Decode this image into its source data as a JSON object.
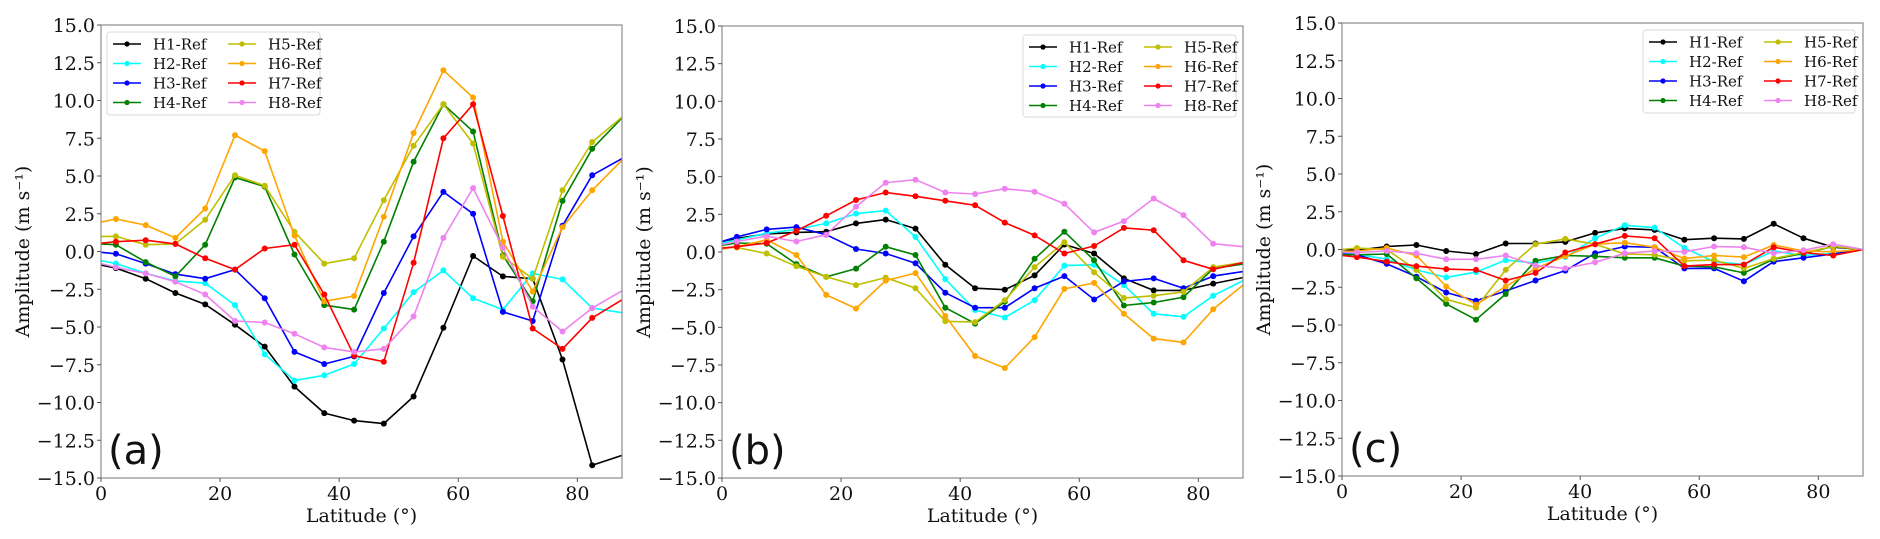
{
  "chart_data": [
    {
      "type": "line",
      "panel_label": "(a)",
      "xlabel": "Latitude (°)",
      "ylabel": "Amplitude (m s⁻¹)",
      "xlim": [
        0,
        87.5
      ],
      "ylim": [
        -15,
        15
      ],
      "xticks": [
        0,
        20,
        40,
        60,
        80
      ],
      "xtick_labels": [
        "0",
        "20",
        "40",
        "60",
        "80"
      ],
      "yticks": [
        -15,
        -12.5,
        -10,
        -7.5,
        -5,
        -2.5,
        0,
        2.5,
        5,
        7.5,
        10,
        12.5,
        15
      ],
      "ytick_labels": [
        "−15.0",
        "−12.5",
        "−10.0",
        "−7.5",
        "−5.0",
        "−2.5",
        "0.0",
        "2.5",
        "5.0",
        "7.5",
        "10.0",
        "12.5",
        "15.0"
      ],
      "legend_position": "top-left",
      "grid": false,
      "x": [
        0,
        2.5,
        7.5,
        12.5,
        17.5,
        22.5,
        27.5,
        32.5,
        37.5,
        42.5,
        47.5,
        52.5,
        57.5,
        62.5,
        67.5,
        72.5,
        77.5,
        82.5,
        87.5
      ],
      "series": [
        {
          "name": "H1-Ref",
          "color": "#000000",
          "values": [
            -0.9,
            -1.1,
            -1.8,
            -2.75,
            -3.5,
            -4.85,
            -6.3,
            -8.95,
            -10.7,
            -11.2,
            -11.4,
            -9.6,
            -5.05,
            -0.3,
            -1.65,
            -1.8,
            -7.15,
            -14.15,
            -13.5
          ]
        },
        {
          "name": "H2-Ref",
          "color": "#00ffff",
          "values": [
            -0.6,
            -0.8,
            -1.45,
            -1.95,
            -2.1,
            -3.55,
            -6.8,
            -8.55,
            -8.2,
            -7.45,
            -5.1,
            -2.7,
            -1.25,
            -3.1,
            -3.85,
            -1.45,
            -1.85,
            -3.75,
            -4.05
          ]
        },
        {
          "name": "H3-Ref",
          "color": "#0000ff",
          "values": [
            -0.05,
            -0.15,
            -0.8,
            -1.5,
            -1.8,
            -1.2,
            -3.1,
            -6.65,
            -7.45,
            -6.95,
            -2.75,
            1.0,
            3.95,
            2.5,
            -4.0,
            -4.6,
            1.7,
            5.05,
            6.15
          ]
        },
        {
          "name": "H4-Ref",
          "color": "#008000",
          "values": [
            0.5,
            0.45,
            -0.7,
            -1.65,
            0.45,
            4.9,
            4.3,
            -0.2,
            -3.55,
            -3.85,
            0.65,
            5.95,
            9.75,
            7.95,
            -0.25,
            -3.3,
            3.35,
            6.8,
            8.85
          ]
        },
        {
          "name": "H5-Ref",
          "color": "#bfbf00",
          "values": [
            1.0,
            1.0,
            0.45,
            0.5,
            2.1,
            5.05,
            4.35,
            1.3,
            -0.8,
            -0.45,
            3.4,
            7.0,
            9.75,
            7.15,
            -0.35,
            -1.8,
            4.05,
            7.25,
            8.9
          ]
        },
        {
          "name": "H6-Ref",
          "color": "#ffa500",
          "values": [
            1.95,
            2.15,
            1.75,
            0.9,
            2.85,
            7.7,
            6.65,
            1.05,
            -3.3,
            -2.95,
            2.3,
            7.85,
            12.0,
            10.2,
            0.65,
            -2.65,
            1.6,
            4.05,
            6.05
          ]
        },
        {
          "name": "H7-Ref",
          "color": "#ff0000",
          "values": [
            0.55,
            0.65,
            0.75,
            0.5,
            -0.45,
            -1.2,
            0.2,
            0.45,
            -2.85,
            -6.9,
            -7.3,
            -0.75,
            7.5,
            9.75,
            2.35,
            -5.1,
            -6.45,
            -4.4,
            -3.2
          ]
        },
        {
          "name": "H8-Ref",
          "color": "#ee82ee",
          "values": [
            -0.8,
            -1.05,
            -1.45,
            -2.0,
            -2.85,
            -4.6,
            -4.7,
            -5.45,
            -6.35,
            -6.65,
            -6.45,
            -4.3,
            0.9,
            4.2,
            0.25,
            -3.65,
            -5.3,
            -3.75,
            -2.6
          ]
        }
      ]
    },
    {
      "type": "line",
      "panel_label": "(b)",
      "xlabel": "Latitude (°)",
      "ylabel": "Amplitude (m s⁻¹)",
      "xlim": [
        0,
        87.5
      ],
      "ylim": [
        -15,
        15
      ],
      "xticks": [
        0,
        20,
        40,
        60,
        80
      ],
      "xtick_labels": [
        "0",
        "20",
        "40",
        "60",
        "80"
      ],
      "yticks": [
        -15,
        -12.5,
        -10,
        -7.5,
        -5,
        -2.5,
        0,
        2.5,
        5,
        7.5,
        10,
        12.5,
        15
      ],
      "ytick_labels": [
        "−15.0",
        "−12.5",
        "−10.0",
        "−7.5",
        "−5.0",
        "−2.5",
        "0.0",
        "2.5",
        "5.0",
        "7.5",
        "10.0",
        "12.5",
        "15.0"
      ],
      "legend_position": "top-right",
      "grid": false,
      "x": [
        0,
        2.5,
        7.5,
        12.5,
        17.5,
        22.5,
        27.5,
        32.5,
        37.5,
        42.5,
        47.5,
        52.5,
        57.5,
        62.5,
        67.5,
        72.5,
        77.5,
        82.5,
        87.5
      ],
      "series": [
        {
          "name": "H1-Ref",
          "color": "#000000",
          "values": [
            0.6,
            0.9,
            1.2,
            1.3,
            1.35,
            1.9,
            2.15,
            1.55,
            -0.85,
            -2.4,
            -2.5,
            -1.55,
            0.5,
            -0.1,
            -1.75,
            -2.55,
            -2.55,
            -2.1,
            -1.7
          ]
        },
        {
          "name": "H2-Ref",
          "color": "#00ffff",
          "values": [
            0.6,
            0.8,
            1.25,
            1.5,
            1.9,
            2.55,
            2.75,
            1.0,
            -1.8,
            -3.85,
            -4.35,
            -3.2,
            -0.9,
            -0.85,
            -2.2,
            -4.1,
            -4.3,
            -2.9,
            -1.9
          ]
        },
        {
          "name": "H3-Ref",
          "color": "#0000ff",
          "values": [
            0.7,
            1.0,
            1.5,
            1.65,
            1.15,
            0.2,
            -0.1,
            -0.75,
            -2.7,
            -3.7,
            -3.7,
            -2.4,
            -1.6,
            -3.15,
            -1.95,
            -1.75,
            -2.4,
            -1.6,
            -1.3
          ]
        },
        {
          "name": "H4-Ref",
          "color": "#008000",
          "values": [
            0.45,
            0.6,
            0.55,
            -0.8,
            -1.65,
            -1.1,
            0.35,
            -0.2,
            -3.7,
            -4.75,
            -3.3,
            -0.45,
            1.35,
            -0.55,
            -3.55,
            -3.35,
            -3.0,
            -1.1,
            -0.8
          ]
        },
        {
          "name": "H5-Ref",
          "color": "#bfbf00",
          "values": [
            0.3,
            0.3,
            -0.1,
            -0.95,
            -1.65,
            -2.2,
            -1.7,
            -2.4,
            -4.6,
            -4.65,
            -3.2,
            -1.0,
            0.65,
            -1.35,
            -3.05,
            -2.9,
            -2.65,
            -1.0,
            -0.7
          ]
        },
        {
          "name": "H6-Ref",
          "color": "#ffa500",
          "values": [
            0.2,
            0.35,
            0.8,
            -0.2,
            -2.85,
            -3.75,
            -1.9,
            -1.4,
            -4.25,
            -6.9,
            -7.7,
            -5.65,
            -2.45,
            -2.05,
            -4.1,
            -5.75,
            -6.0,
            -3.8,
            -2.2
          ]
        },
        {
          "name": "H7-Ref",
          "color": "#ff0000",
          "values": [
            0.25,
            0.35,
            0.6,
            1.4,
            2.4,
            3.45,
            3.95,
            3.7,
            3.4,
            3.1,
            1.95,
            1.1,
            -0.1,
            0.4,
            1.6,
            1.45,
            -0.55,
            -1.15,
            -0.7
          ]
        },
        {
          "name": "H8-Ref",
          "color": "#ee82ee",
          "values": [
            0.5,
            0.7,
            1.05,
            0.7,
            1.15,
            3.0,
            4.6,
            4.8,
            3.95,
            3.85,
            4.2,
            4.0,
            3.2,
            1.3,
            2.05,
            3.55,
            2.45,
            0.55,
            0.35
          ]
        }
      ]
    },
    {
      "type": "line",
      "panel_label": "(c)",
      "xlabel": "Latitude (°)",
      "ylabel": "Amplitude (m s⁻¹)",
      "xlim": [
        0,
        87.5
      ],
      "ylim": [
        -15,
        15
      ],
      "xticks": [
        0,
        20,
        40,
        60,
        80
      ],
      "xtick_labels": [
        "0",
        "20",
        "40",
        "60",
        "80"
      ],
      "yticks": [
        -15,
        -12.5,
        -10,
        -7.5,
        -5,
        -2.5,
        0,
        2.5,
        5,
        7.5,
        10,
        12.5,
        15
      ],
      "ytick_labels": [
        "−15.0",
        "−12.5",
        "−10.0",
        "−7.5",
        "−5.0",
        "−2.5",
        "0.0",
        "2.5",
        "5.0",
        "7.5",
        "10.0",
        "12.5",
        "15.0"
      ],
      "legend_position": "top-right",
      "grid": false,
      "x": [
        0,
        2.5,
        7.5,
        12.5,
        17.5,
        22.5,
        27.5,
        32.5,
        37.5,
        42.5,
        47.5,
        52.5,
        57.5,
        62.5,
        67.5,
        72.5,
        77.5,
        82.5,
        87.5
      ],
      "series": [
        {
          "name": "H1-Ref",
          "color": "#000000",
          "values": [
            0.0,
            -0.05,
            0.2,
            0.3,
            -0.1,
            -0.3,
            0.4,
            0.4,
            0.5,
            1.1,
            1.4,
            1.3,
            0.65,
            0.75,
            0.7,
            1.7,
            0.75,
            0.15,
            0.0
          ]
        },
        {
          "name": "H2-Ref",
          "color": "#00ffff",
          "values": [
            -0.25,
            -0.3,
            -0.65,
            -1.35,
            -1.85,
            -1.5,
            -0.7,
            -0.9,
            -0.5,
            0.75,
            1.6,
            1.45,
            0.1,
            -0.8,
            -1.0,
            -0.1,
            -0.4,
            -0.25,
            0.0
          ]
        },
        {
          "name": "H3-Ref",
          "color": "#0000ff",
          "values": [
            -0.3,
            -0.35,
            -0.95,
            -1.8,
            -2.85,
            -3.4,
            -2.75,
            -2.05,
            -1.4,
            -0.25,
            0.2,
            0.15,
            -1.25,
            -1.25,
            -2.1,
            -0.8,
            -0.55,
            -0.3,
            0.0
          ]
        },
        {
          "name": "H4-Ref",
          "color": "#008000",
          "values": [
            -0.35,
            -0.35,
            -0.3,
            -1.9,
            -3.6,
            -4.65,
            -2.95,
            -0.75,
            -0.4,
            -0.45,
            -0.55,
            -0.55,
            -1.1,
            -1.15,
            -1.55,
            -0.65,
            -0.25,
            0.2,
            0.0
          ]
        },
        {
          "name": "H5-Ref",
          "color": "#bfbf00",
          "values": [
            0.0,
            0.1,
            0.0,
            -1.35,
            -3.3,
            -3.85,
            -1.35,
            0.35,
            0.7,
            0.35,
            -0.3,
            -0.35,
            -0.75,
            -0.7,
            -1.25,
            -0.6,
            -0.2,
            0.2,
            0.0
          ]
        },
        {
          "name": "H6-Ref",
          "color": "#ffa500",
          "values": [
            -0.15,
            -0.1,
            0.1,
            -0.4,
            -2.45,
            -3.65,
            -2.45,
            -1.25,
            -0.45,
            0.35,
            0.45,
            0.15,
            -0.6,
            -0.4,
            -0.5,
            0.3,
            -0.1,
            -0.15,
            0.0
          ]
        },
        {
          "name": "H7-Ref",
          "color": "#ff0000",
          "values": [
            -0.4,
            -0.5,
            -0.8,
            -1.1,
            -1.3,
            -1.35,
            -2.05,
            -1.55,
            -0.2,
            0.35,
            0.9,
            0.75,
            -1.1,
            -1.0,
            -1.0,
            0.15,
            -0.2,
            -0.4,
            0.0
          ]
        },
        {
          "name": "H8-Ref",
          "color": "#ee82ee",
          "values": [
            -0.2,
            -0.2,
            -0.1,
            -0.25,
            -0.65,
            -0.65,
            -0.4,
            -1.05,
            -1.25,
            -0.85,
            -0.25,
            -0.1,
            -0.15,
            0.2,
            0.15,
            -0.25,
            -0.05,
            0.35,
            0.0
          ]
        }
      ]
    }
  ]
}
